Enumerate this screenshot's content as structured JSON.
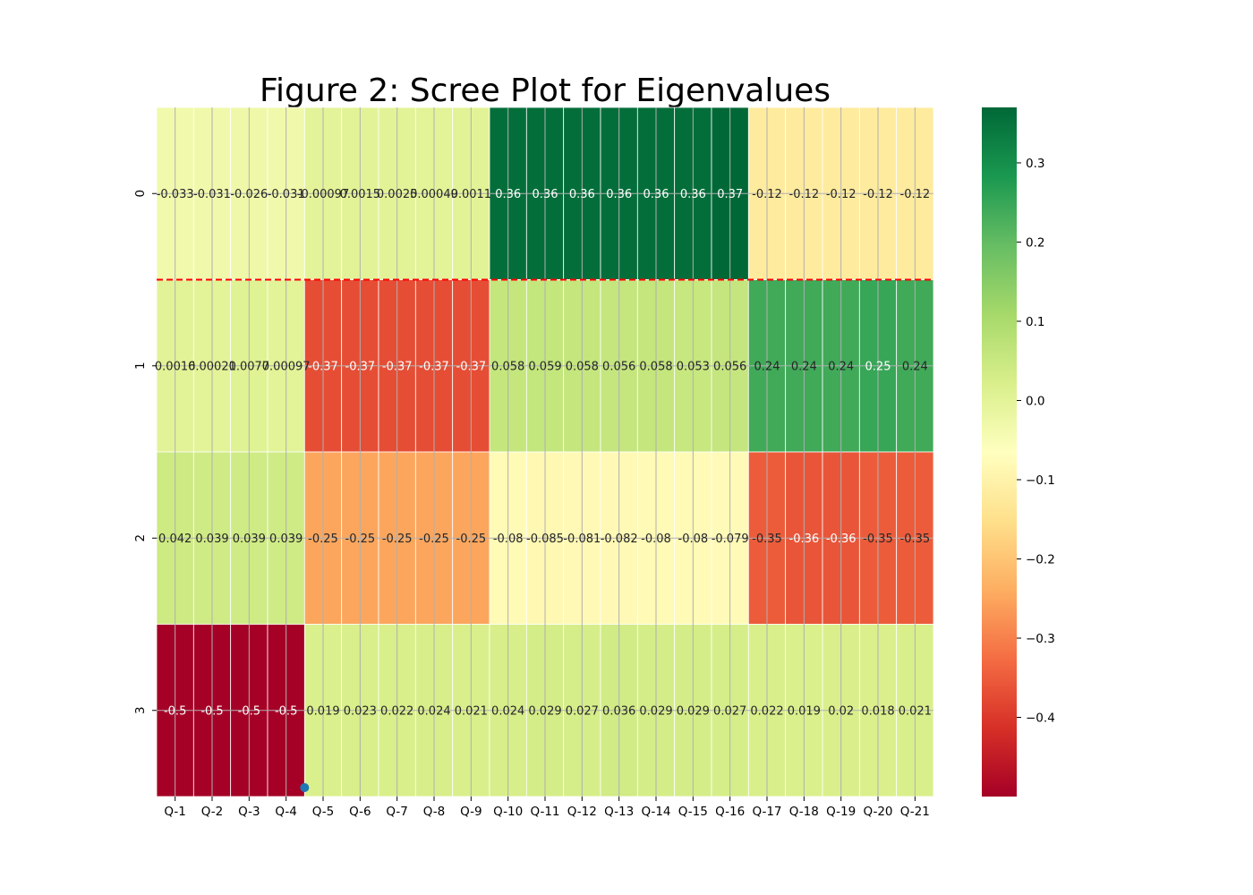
{
  "chart_data": {
    "type": "heatmap",
    "title": "Figure 2: Scree Plot for Eigenvalues",
    "xlabel": "",
    "ylabel": "",
    "x_categories": [
      "Q-1",
      "Q-2",
      "Q-3",
      "Q-4",
      "Q-5",
      "Q-6",
      "Q-7",
      "Q-8",
      "Q-9",
      "Q-10",
      "Q-11",
      "Q-12",
      "Q-13",
      "Q-14",
      "Q-15",
      "Q-16",
      "Q-17",
      "Q-18",
      "Q-19",
      "Q-20",
      "Q-21"
    ],
    "y_categories": [
      "0",
      "1",
      "2",
      "3"
    ],
    "values": [
      [
        -0.033,
        -0.031,
        -0.026,
        -0.031,
        -0.00097,
        0.0015,
        0.0025,
        0.00049,
        0.0011,
        0.36,
        0.36,
        0.36,
        0.36,
        0.36,
        0.36,
        0.37,
        -0.12,
        -0.12,
        -0.12,
        -0.12,
        -0.12
      ],
      [
        0.0016,
        0.00021,
        0.0077,
        0.00097,
        -0.37,
        -0.37,
        -0.37,
        -0.37,
        -0.37,
        0.058,
        0.059,
        0.058,
        0.056,
        0.058,
        0.053,
        0.056,
        0.24,
        0.24,
        0.24,
        0.25,
        0.24
      ],
      [
        0.042,
        0.039,
        0.039,
        0.039,
        -0.25,
        -0.25,
        -0.25,
        -0.25,
        -0.25,
        -0.08,
        -0.085,
        -0.081,
        -0.082,
        -0.08,
        -0.08,
        -0.079,
        -0.35,
        -0.36,
        -0.36,
        -0.35,
        -0.35
      ],
      [
        -0.5,
        -0.5,
        -0.5,
        -0.5,
        0.019,
        0.023,
        0.022,
        0.024,
        0.021,
        0.024,
        0.029,
        0.027,
        0.036,
        0.029,
        0.029,
        0.027,
        0.022,
        0.019,
        0.02,
        0.018,
        0.021
      ]
    ],
    "labels": [
      [
        "-0.033",
        "-0.031",
        "-0.026",
        "-0.031",
        "-0.00097",
        "0.0015",
        "0.0025",
        "0.00049",
        "0.0011",
        "0.36",
        "0.36",
        "0.36",
        "0.36",
        "0.36",
        "0.36",
        "0.37",
        "-0.12",
        "-0.12",
        "-0.12",
        "-0.12",
        "-0.12"
      ],
      [
        "0.0016",
        "0.00021",
        "0.0077",
        "0.00097",
        "-0.37",
        "-0.37",
        "-0.37",
        "-0.37",
        "-0.37",
        "0.058",
        "0.059",
        "0.058",
        "0.056",
        "0.058",
        "0.053",
        "0.056",
        "0.24",
        "0.24",
        "0.24",
        "0.25",
        "0.24"
      ],
      [
        "0.042",
        "0.039",
        "0.039",
        "0.039",
        "-0.25",
        "-0.25",
        "-0.25",
        "-0.25",
        "-0.25",
        "-0.08",
        "-0.085",
        "-0.081",
        "-0.082",
        "-0.08",
        "-0.08",
        "-0.079",
        "-0.35",
        "-0.36",
        "-0.36",
        "-0.35",
        "-0.35"
      ],
      [
        "-0.5",
        "-0.5",
        "-0.5",
        "-0.5",
        "0.019",
        "0.023",
        "0.022",
        "0.024",
        "0.021",
        "0.024",
        "0.029",
        "0.027",
        "0.036",
        "0.029",
        "0.029",
        "0.027",
        "0.022",
        "0.019",
        "0.02",
        "0.018",
        "0.021"
      ]
    ],
    "colormap": "RdYlGn",
    "vmin": -0.5,
    "vmax": 0.37,
    "colorbar_ticks": [
      0.3,
      0.2,
      0.1,
      0.0,
      -0.1,
      -0.2,
      -0.3,
      -0.4
    ],
    "colorbar_tick_labels": [
      "0.3",
      "0.2",
      "0.1",
      "0.0",
      "−0.1",
      "−0.2",
      "−0.3",
      "−0.4"
    ],
    "grid": true,
    "reference_line": {
      "y_between_rows": [
        0,
        1
      ],
      "color": "#ff0000",
      "style": "dashed"
    },
    "marker": {
      "color": "#1f77b4",
      "x_between_columns": [
        3,
        4
      ],
      "y_row": 3
    }
  }
}
